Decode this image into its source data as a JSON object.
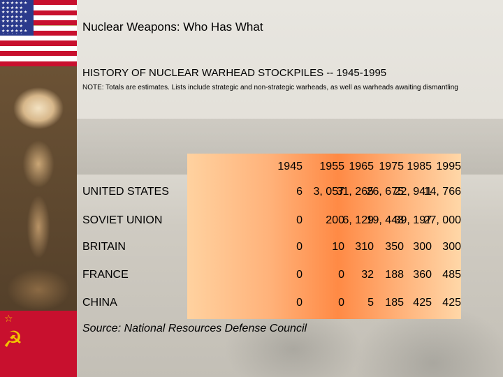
{
  "slide": {
    "title": "Nuclear Weapons: Who Has What",
    "subtitle": "HISTORY OF NUCLEAR WARHEAD STOCKPILES -- 1945-1995",
    "note": "NOTE: Totals are estimates. Lists include strategic and non-strategic warheads, as well as warheads awaiting dismantling",
    "source": "Source: National Resources Defense Council"
  },
  "decor": {
    "us_flag_icon": "us-flag",
    "soviet_flag_icon": "soviet-flag",
    "soviet_star": "☆",
    "soviet_hammer_sickle": "☭",
    "colors": {
      "flag_red": "#c8102e",
      "flag_blue": "#2b3a8c",
      "table_orange": "#ff8a45"
    }
  },
  "table": {
    "years": [
      "1945",
      "1955",
      "1965",
      "1975",
      "1985",
      "1995"
    ],
    "rows": [
      {
        "country": "UNITED STATES",
        "values": [
          "6",
          "3, 057",
          "31, 265",
          "26, 675",
          "22, 941",
          "14, 766"
        ]
      },
      {
        "country": "SOVIET UNION",
        "values": [
          "0",
          "200",
          "6, 129",
          "19, 443",
          "39, 197",
          "27, 000"
        ]
      },
      {
        "country": "BRITAIN",
        "values": [
          "0",
          "10",
          "310",
          "350",
          "300",
          "300"
        ]
      },
      {
        "country": "FRANCE",
        "values": [
          "0",
          "0",
          "32",
          "188",
          "360",
          "485"
        ]
      },
      {
        "country": "CHINA",
        "values": [
          "0",
          "0",
          "5",
          "185",
          "425",
          "425"
        ]
      }
    ]
  }
}
